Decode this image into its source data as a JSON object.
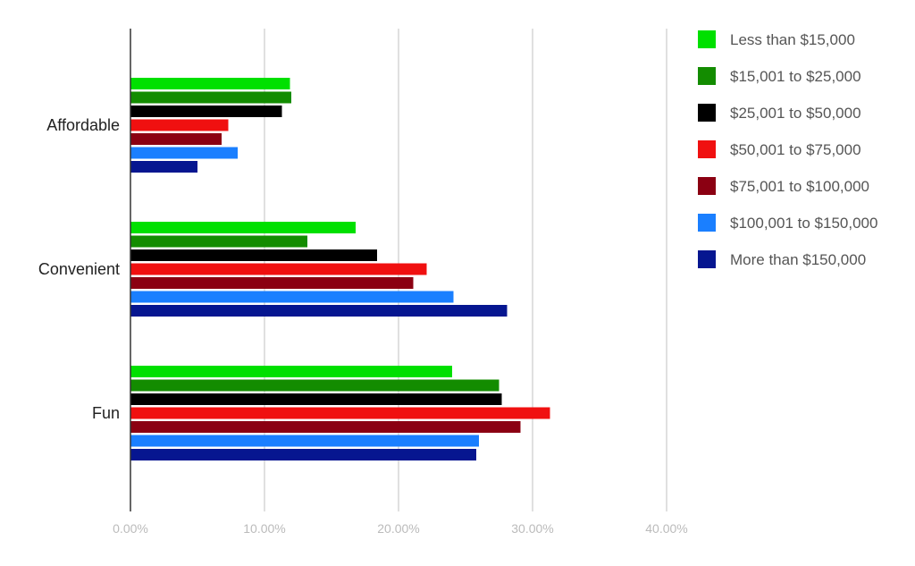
{
  "chart_data": {
    "type": "bar",
    "orientation": "horizontal",
    "categories": [
      "Affordable",
      "Convenient",
      "Fun"
    ],
    "series": [
      {
        "name": "Less than $15,000",
        "color": "#00e000",
        "values": [
          11.9,
          16.8,
          24.0
        ]
      },
      {
        "name": "$15,001 to $25,000",
        "color": "#138c00",
        "values": [
          12.0,
          13.2,
          27.5
        ]
      },
      {
        "name": "$25,001 to $50,000",
        "color": "#000000",
        "values": [
          11.3,
          18.4,
          27.7
        ]
      },
      {
        "name": "$50,001 to $75,000",
        "color": "#f01010",
        "values": [
          7.3,
          22.1,
          31.3
        ]
      },
      {
        "name": "$75,001 to $100,000",
        "color": "#8b0012",
        "values": [
          6.8,
          21.1,
          29.1
        ]
      },
      {
        "name": "$100,001 to $150,000",
        "color": "#1a7fff",
        "values": [
          8.0,
          24.1,
          26.0
        ]
      },
      {
        "name": "More than $150,000",
        "color": "#061690",
        "values": [
          5.0,
          28.1,
          25.8
        ]
      }
    ],
    "xlim": [
      0,
      40
    ],
    "xticks": [
      {
        "value": 0,
        "label": "0.00%"
      },
      {
        "value": 10,
        "label": "10.00%"
      },
      {
        "value": 20,
        "label": "20.00%"
      },
      {
        "value": 30,
        "label": "30.00%"
      },
      {
        "value": 40,
        "label": "40.00%"
      }
    ],
    "grid": true,
    "legend": "right"
  }
}
